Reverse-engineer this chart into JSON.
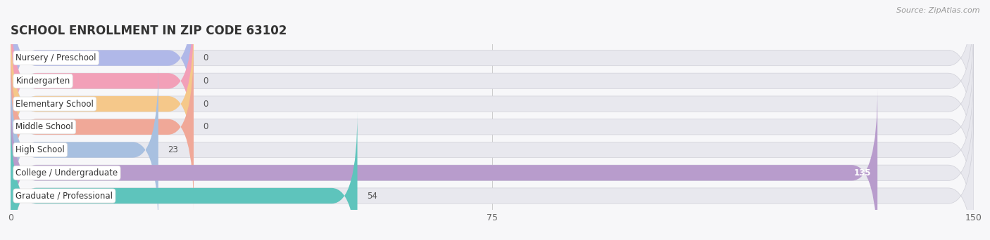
{
  "title": "SCHOOL ENROLLMENT IN ZIP CODE 63102",
  "source": "Source: ZipAtlas.com",
  "categories": [
    "Nursery / Preschool",
    "Kindergarten",
    "Elementary School",
    "Middle School",
    "High School",
    "College / Undergraduate",
    "Graduate / Professional"
  ],
  "values": [
    0,
    0,
    0,
    0,
    23,
    135,
    54
  ],
  "bar_colors": [
    "#b0b8e8",
    "#f2a0b8",
    "#f5c88a",
    "#f0a898",
    "#a8c0e0",
    "#b89ccc",
    "#5ec4bc"
  ],
  "bar_bg_color": "#e8e8ee",
  "label_bg_color": "#ffffff",
  "xlim": [
    0,
    150
  ],
  "xticks": [
    0,
    75,
    150
  ],
  "label_fontsize": 8.5,
  "value_fontsize": 8.5,
  "title_fontsize": 12,
  "source_fontsize": 8,
  "figsize": [
    14.06,
    3.42
  ],
  "dpi": 100,
  "bg_color": "#f7f7f9"
}
